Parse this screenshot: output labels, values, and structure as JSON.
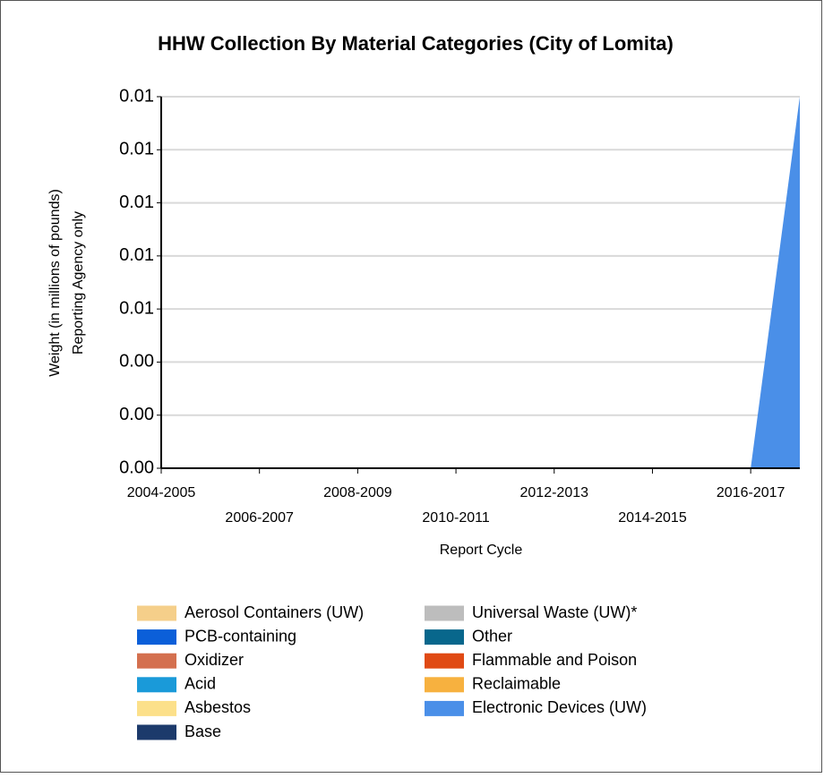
{
  "chart_data": {
    "type": "stacked_area",
    "title": "HHW Collection By Material Categories (City of Lomita)",
    "y_label_lines": [
      "Weight (in millions of pounds)",
      "Reporting Agency only"
    ],
    "x_label": "Report Cycle",
    "categories": [
      "2004-2005",
      null,
      "2006-2007",
      null,
      "2008-2009",
      null,
      "2010-2011",
      null,
      "2012-2013",
      null,
      "2014-2015",
      null,
      "2016-2017",
      null
    ],
    "ylim": [
      0,
      0.014
    ],
    "yticks": [
      {
        "value": 0,
        "label": "0.00"
      },
      {
        "value": 0.002,
        "label": "0.00"
      },
      {
        "value": 0.004,
        "label": "0.00"
      },
      {
        "value": 0.006,
        "label": "0.01"
      },
      {
        "value": 0.008,
        "label": "0.01"
      },
      {
        "value": 0.01,
        "label": "0.01"
      },
      {
        "value": 0.012,
        "label": "0.01"
      },
      {
        "value": 0.014,
        "label": "0.01"
      }
    ],
    "grid": true,
    "series": [
      {
        "name": "Aerosol Containers (UW)",
        "color": "#f5cf8a",
        "values": [
          0,
          0,
          0,
          0,
          0,
          0,
          0,
          0,
          0,
          0,
          0,
          0,
          0,
          0
        ]
      },
      {
        "name": "PCB-containing",
        "color": "#0b5fd9",
        "values": [
          0,
          0,
          0,
          0,
          0,
          0,
          0,
          0,
          0,
          0,
          0,
          0,
          0,
          0
        ]
      },
      {
        "name": "Oxidizer",
        "color": "#d4704f",
        "values": [
          0,
          0,
          0,
          0,
          0,
          0,
          0,
          0,
          0,
          0,
          0,
          0,
          0,
          0
        ]
      },
      {
        "name": "Acid",
        "color": "#1a9ad9",
        "values": [
          0,
          0,
          0,
          0,
          0,
          0,
          0,
          0,
          0,
          0,
          0,
          0,
          0,
          0
        ]
      },
      {
        "name": "Asbestos",
        "color": "#fce08a",
        "values": [
          0,
          0,
          0,
          0,
          0,
          0,
          0,
          0,
          0,
          0,
          0,
          0,
          0,
          0
        ]
      },
      {
        "name": "Base",
        "color": "#1c3a6b",
        "values": [
          0,
          0,
          0,
          0,
          0,
          0,
          0,
          0,
          0,
          0,
          0,
          0,
          0,
          0
        ]
      },
      {
        "name": "Universal Waste (UW)*",
        "color": "#bdbdbd",
        "values": [
          0,
          0,
          0,
          0,
          0,
          0,
          0,
          0,
          0,
          0,
          0,
          0,
          0,
          0
        ]
      },
      {
        "name": "Other",
        "color": "#08678c",
        "values": [
          0,
          0,
          0,
          0,
          0,
          0,
          0,
          0,
          0,
          0,
          0,
          0,
          0,
          0
        ]
      },
      {
        "name": "Flammable and Poison",
        "color": "#e04a14",
        "values": [
          0,
          0,
          0,
          0,
          0,
          0,
          0,
          0,
          0,
          0,
          0,
          0,
          0,
          0
        ]
      },
      {
        "name": "Reclaimable",
        "color": "#f7b13f",
        "values": [
          0,
          0,
          0,
          0,
          0,
          0,
          0,
          0,
          0,
          0,
          0,
          0,
          0,
          0
        ]
      },
      {
        "name": "Electronic Devices (UW)",
        "color": "#4a8fe8",
        "values": [
          0,
          0,
          0,
          0,
          0,
          0,
          0,
          0,
          0,
          0,
          0,
          0,
          0,
          0.014
        ]
      }
    ]
  }
}
